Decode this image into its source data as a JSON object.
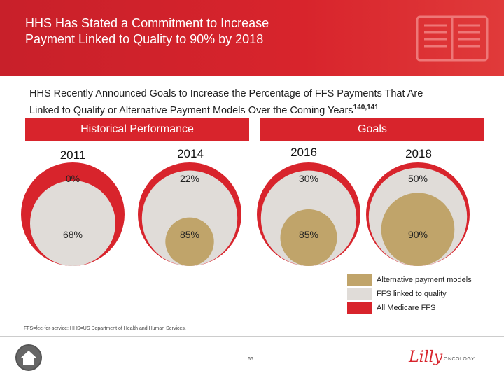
{
  "header": {
    "title_line1": "HHS Has Stated a Commitment to Increase",
    "title_line2": "Payment Linked to Quality to 90% by 2018"
  },
  "subtitle": {
    "line1": "HHS Recently Announced Goals to Increase the Percentage of FFS Payments That Are",
    "line2": "Linked to Quality or Alternative Payment Models Over the Coming Years",
    "superscript": "140,141"
  },
  "sections": {
    "historical_label": "Historical Performance",
    "goals_label": "Goals"
  },
  "chart_data": {
    "type": "nested-circles",
    "categories": [
      "2011",
      "2014",
      "2016",
      "2018"
    ],
    "series": [
      {
        "name": "Alternative payment models",
        "values": [
          0,
          22,
          30,
          50
        ],
        "labels": [
          "0%",
          "22%",
          "30%",
          "50%"
        ]
      },
      {
        "name": "FFS linked to quality",
        "values": [
          68,
          85,
          85,
          90
        ],
        "labels": [
          "68%",
          "85%",
          "85%",
          "90%"
        ]
      },
      {
        "name": "All Medicare FFS",
        "values": [
          100,
          100,
          100,
          100
        ]
      }
    ],
    "colors": {
      "alternative": "#c0a46a",
      "quality": "#e0dcd8",
      "all_ffs": "#d8242c"
    }
  },
  "legend": {
    "items": [
      {
        "label": "Alternative payment models",
        "color": "#c0a46a"
      },
      {
        "label": "FFS linked to quality",
        "color": "#e0dcd8"
      },
      {
        "label": "All Medicare FFS",
        "color": "#d8242c"
      }
    ]
  },
  "footnote": "FFS=fee-for-service; HHS=US Department of Health and Human Services.",
  "page_number": "66",
  "logo": {
    "text": "Lilly",
    "sub": "ONCOLOGY"
  }
}
